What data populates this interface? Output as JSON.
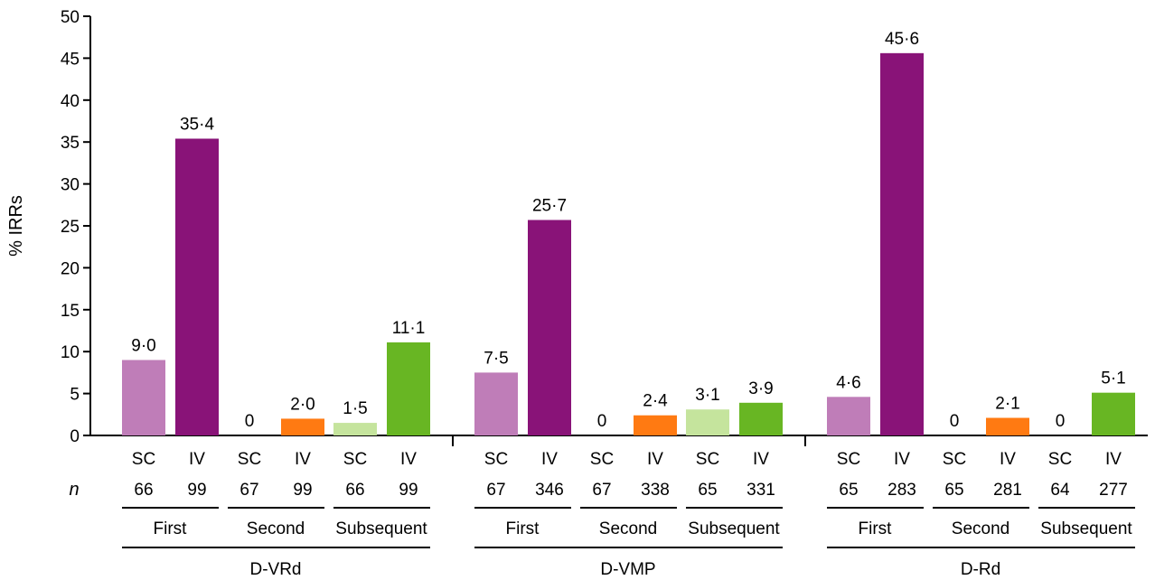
{
  "chart_data": {
    "type": "bar",
    "ylabel": "% IRRs",
    "ylim": [
      0,
      50
    ],
    "yticks": [
      0,
      5,
      10,
      15,
      20,
      25,
      30,
      35,
      40,
      45,
      50
    ],
    "n_label": "n",
    "colors": {
      "first_sc": "#bf7db8",
      "first_iv": "#891378",
      "second_iv": "#ff7a12",
      "subsequent_sc": "#c5e49d",
      "subsequent_iv": "#68b623"
    },
    "regimens": [
      {
        "name": "D-VRd",
        "doses": [
          {
            "name": "First",
            "bars": [
              {
                "route": "SC",
                "n": "66",
                "value": 9.0,
                "label": "9·0",
                "color_key": "first_sc"
              },
              {
                "route": "IV",
                "n": "99",
                "value": 35.4,
                "label": "35·4",
                "color_key": "first_iv"
              }
            ]
          },
          {
            "name": "Second",
            "bars": [
              {
                "route": "SC",
                "n": "67",
                "value": 0,
                "label": "0",
                "color_key": "first_sc"
              },
              {
                "route": "IV",
                "n": "99",
                "value": 2.0,
                "label": "2·0",
                "color_key": "second_iv"
              }
            ]
          },
          {
            "name": "Subsequent",
            "bars": [
              {
                "route": "SC",
                "n": "66",
                "value": 1.5,
                "label": "1·5",
                "color_key": "subsequent_sc"
              },
              {
                "route": "IV",
                "n": "99",
                "value": 11.1,
                "label": "11·1",
                "color_key": "subsequent_iv"
              }
            ]
          }
        ]
      },
      {
        "name": "D-VMP",
        "doses": [
          {
            "name": "First",
            "bars": [
              {
                "route": "SC",
                "n": "67",
                "value": 7.5,
                "label": "7·5",
                "color_key": "first_sc"
              },
              {
                "route": "IV",
                "n": "346",
                "value": 25.7,
                "label": "25·7",
                "color_key": "first_iv"
              }
            ]
          },
          {
            "name": "Second",
            "bars": [
              {
                "route": "SC",
                "n": "67",
                "value": 0,
                "label": "0",
                "color_key": "first_sc"
              },
              {
                "route": "IV",
                "n": "338",
                "value": 2.4,
                "label": "2·4",
                "color_key": "second_iv"
              }
            ]
          },
          {
            "name": "Subsequent",
            "bars": [
              {
                "route": "SC",
                "n": "65",
                "value": 3.1,
                "label": "3·1",
                "color_key": "subsequent_sc"
              },
              {
                "route": "IV",
                "n": "331",
                "value": 3.9,
                "label": "3·9",
                "color_key": "subsequent_iv"
              }
            ]
          }
        ]
      },
      {
        "name": "D-Rd",
        "doses": [
          {
            "name": "First",
            "bars": [
              {
                "route": "SC",
                "n": "65",
                "value": 4.6,
                "label": "4·6",
                "color_key": "first_sc"
              },
              {
                "route": "IV",
                "n": "283",
                "value": 45.6,
                "label": "45·6",
                "color_key": "first_iv"
              }
            ]
          },
          {
            "name": "Second",
            "bars": [
              {
                "route": "SC",
                "n": "65",
                "value": 0,
                "label": "0",
                "color_key": "first_sc"
              },
              {
                "route": "IV",
                "n": "281",
                "value": 2.1,
                "label": "2·1",
                "color_key": "second_iv"
              }
            ]
          },
          {
            "name": "Subsequent",
            "bars": [
              {
                "route": "SC",
                "n": "64",
                "value": 0,
                "label": "0",
                "color_key": "subsequent_sc"
              },
              {
                "route": "IV",
                "n": "277",
                "value": 5.1,
                "label": "5·1",
                "color_key": "subsequent_iv"
              }
            ]
          }
        ]
      }
    ]
  }
}
